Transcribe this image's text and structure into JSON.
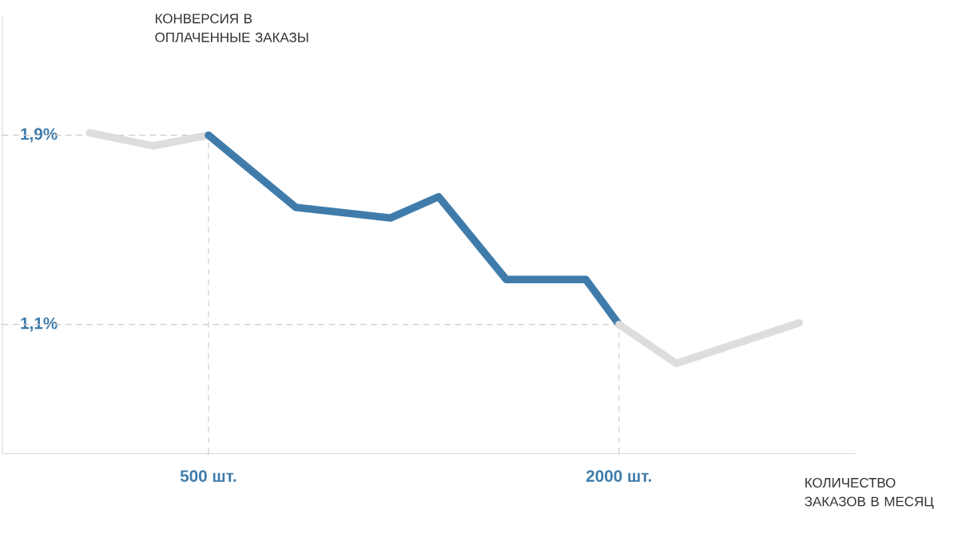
{
  "chart_data": {
    "type": "line",
    "xlabel": "КОЛИЧЕСТВО ЗАКАЗОВ В МЕСЯЦ",
    "ylabel": "КОНВЕРСИЯ В ОПЛАЧЕННЫЕ ЗАКАЗЫ",
    "xlim": [
      -253,
      2863
    ],
    "ylim": [
      0.554,
      2.408
    ],
    "xticks": [
      {
        "value": 500,
        "label": "500 шт."
      },
      {
        "value": 2000,
        "label": "2000 шт."
      }
    ],
    "yticks": [
      {
        "value": 1.9,
        "label": "1,9%"
      },
      {
        "value": 1.1,
        "label": "1,1%"
      }
    ],
    "line_style": "solid",
    "series": [
      {
        "color": "#dddddd",
        "x": [
          66,
          297,
          500
        ],
        "values": [
          1.91,
          1.855,
          1.9
        ]
      },
      {
        "color": "#3f7cab",
        "x": [
          500,
          819,
          1165,
          1341,
          1588,
          1879,
          2000
        ],
        "values": [
          1.9,
          1.595,
          1.55,
          1.64,
          1.29,
          1.29,
          1.1
        ]
      },
      {
        "color": "#dddddd",
        "x": [
          2000,
          2209,
          2659
        ],
        "values": [
          1.1,
          0.935,
          1.107
        ]
      }
    ],
    "ref_lines": [
      {
        "axis": "x",
        "value": 500,
        "color": "#cccccc",
        "line_style": "dashed"
      },
      {
        "axis": "x",
        "value": 2000,
        "color": "#cccccc",
        "line_style": "dashed"
      },
      {
        "axis": "y",
        "value": 1.9,
        "color": "#cccccc",
        "line_style": "dashed"
      },
      {
        "axis": "y",
        "value": 1.1,
        "color": "#cccccc",
        "line_style": "dashed"
      }
    ]
  }
}
